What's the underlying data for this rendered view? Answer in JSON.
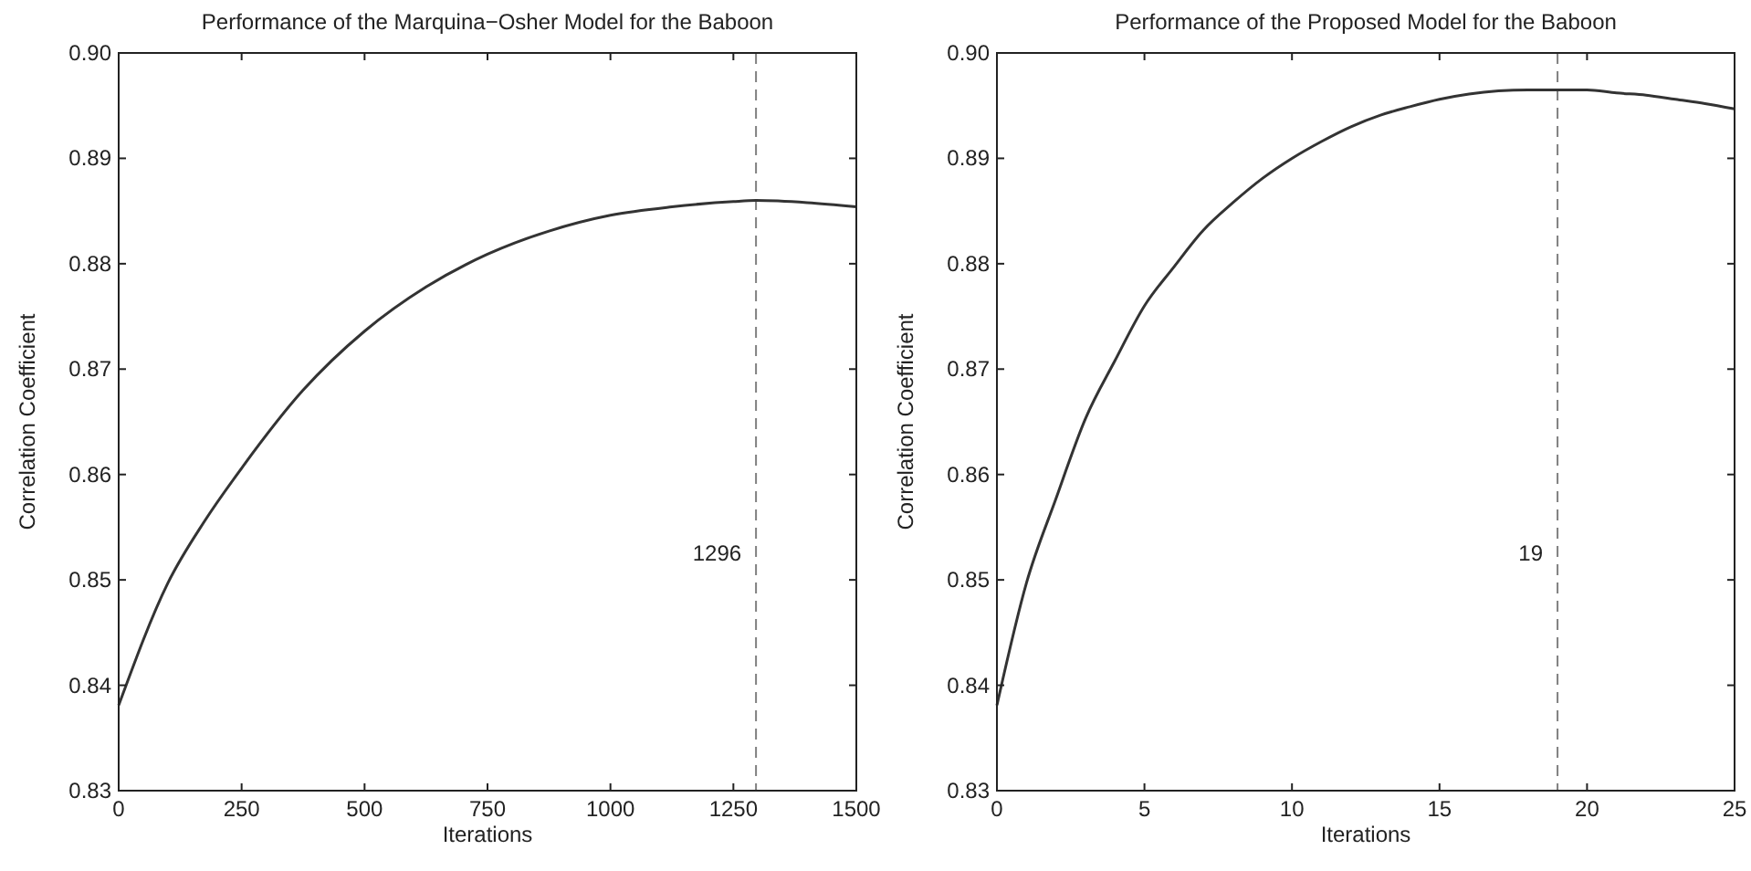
{
  "chart_data": [
    {
      "type": "line",
      "title": "Performance of the Marquina−Osher Model for the Baboon",
      "xlabel": "Iterations",
      "ylabel": "Correlation Coefficient",
      "xlim": [
        0,
        1500
      ],
      "xticks": [
        0,
        250,
        500,
        750,
        1000,
        1250,
        1500
      ],
      "ylim": [
        0.83,
        0.9
      ],
      "yticks": [
        {
          "value": 0.83,
          "label": "0.83"
        },
        {
          "value": 0.84,
          "label": "0.84"
        },
        {
          "value": 0.85,
          "label": "0.85"
        },
        {
          "value": 0.86,
          "label": "0.86"
        },
        {
          "value": 0.87,
          "label": "0.87"
        },
        {
          "value": 0.88,
          "label": "0.88"
        },
        {
          "value": 0.89,
          "label": "0.89"
        },
        {
          "value": 0.9,
          "label": "0.90"
        }
      ],
      "grid": false,
      "line_style": "solid",
      "series": [
        {
          "color": "#333333",
          "x": [
            0,
            100,
            175,
            250,
            375,
            500,
            625,
            750,
            875,
            1000,
            1125,
            1250,
            1296,
            1400,
            1500
          ],
          "values": [
            0.8381,
            0.8497,
            0.8556,
            0.8606,
            0.868,
            0.8736,
            0.8778,
            0.8809,
            0.8831,
            0.8846,
            0.8854,
            0.8859,
            0.886,
            0.8858,
            0.8854
          ]
        }
      ],
      "ref_lines": [
        {
          "axis": "x",
          "value": 1296,
          "label": "1296",
          "color": "#808080",
          "line_style": "dashed"
        }
      ]
    },
    {
      "type": "line",
      "title": "Performance of the Proposed Model for the Baboon",
      "xlabel": "Iterations",
      "ylabel": "Correlation Coefficient",
      "xlim": [
        0,
        25
      ],
      "xticks": [
        0,
        5,
        10,
        15,
        20,
        25
      ],
      "ylim": [
        0.83,
        0.9
      ],
      "yticks": [
        {
          "value": 0.83,
          "label": "0.83"
        },
        {
          "value": 0.84,
          "label": "0.84"
        },
        {
          "value": 0.85,
          "label": "0.85"
        },
        {
          "value": 0.86,
          "label": "0.86"
        },
        {
          "value": 0.87,
          "label": "0.87"
        },
        {
          "value": 0.88,
          "label": "0.88"
        },
        {
          "value": 0.89,
          "label": "0.89"
        },
        {
          "value": 0.9,
          "label": "0.90"
        }
      ],
      "grid": false,
      "line_style": "solid",
      "series": [
        {
          "color": "#333333",
          "x": [
            0,
            1,
            2,
            3,
            4,
            5,
            6,
            7,
            8,
            9,
            10,
            11,
            12,
            13,
            14,
            15,
            16,
            17,
            18,
            19,
            20,
            21,
            22,
            23,
            24,
            25
          ],
          "values": [
            0.8381,
            0.8497,
            0.8577,
            0.8653,
            0.8708,
            0.876,
            0.8797,
            0.8832,
            0.8858,
            0.8881,
            0.89,
            0.8916,
            0.893,
            0.8941,
            0.8949,
            0.8956,
            0.8961,
            0.8964,
            0.8965,
            0.8965,
            0.8965,
            0.8962,
            0.896,
            0.8956,
            0.8952,
            0.8947
          ]
        }
      ],
      "ref_lines": [
        {
          "axis": "x",
          "value": 19,
          "label": "19",
          "color": "#808080",
          "line_style": "dashed"
        }
      ]
    }
  ]
}
